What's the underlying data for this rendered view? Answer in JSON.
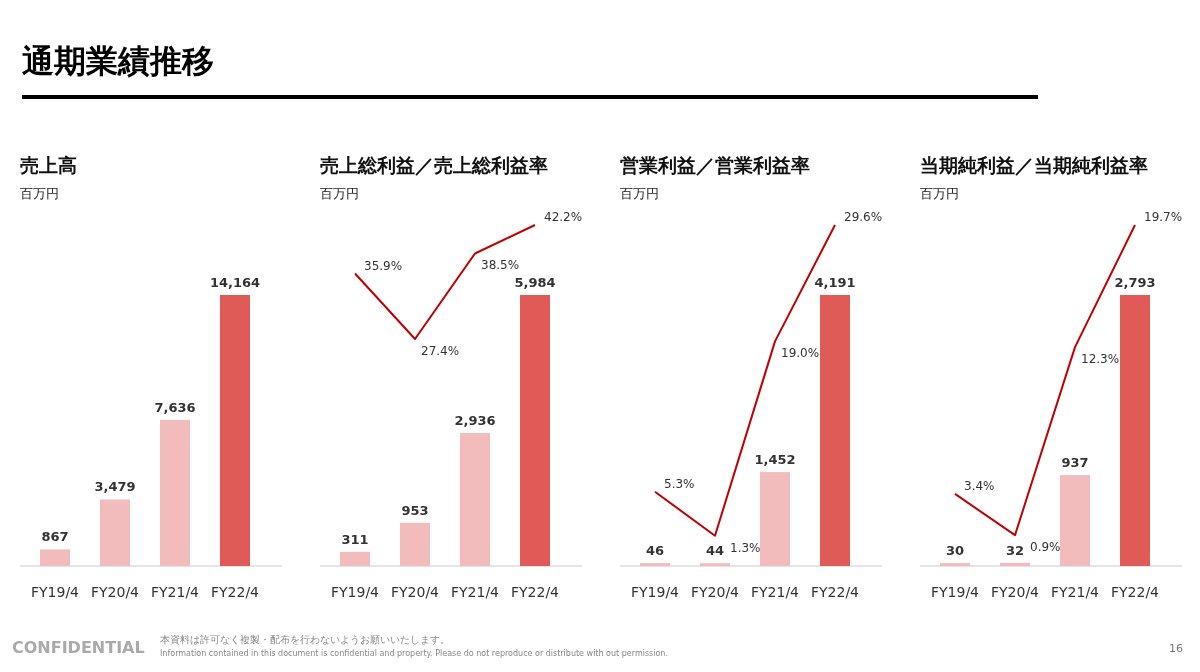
{
  "chart_data": [
    {
      "type": "bar",
      "title": "売上高",
      "subtitle": "百万円",
      "categories": [
        "FY19/4",
        "FY20/4",
        "FY21/4",
        "FY22/4"
      ],
      "series": [
        {
          "colors": [
            "#f2bcbc",
            "#f2bcbc",
            "#f2bcbc",
            "#e05a57"
          ],
          "values": [
            867,
            3479,
            7636,
            14164
          ],
          "value_labels": [
            "867",
            "3,479",
            "7,636",
            "14,164"
          ]
        }
      ],
      "annotations": [
        "通期業績推移",
        "CONFIDENTIAL",
        "本資料は許可なく複製・配布を行わないようお願いいたします。",
        "Information contained in this document is confidential and property. Please do not reproduce or distribute with out permission.",
        "16"
      ]
    },
    {
      "type": "bar",
      "title": "売上総利益／売上総利益率",
      "subtitle": "百万円",
      "categories": [
        "FY19/4",
        "FY20/4",
        "FY21/4",
        "FY22/4"
      ],
      "series": [
        {
          "colors": [
            "#f2bcbc",
            "#f2bcbc",
            "#f2bcbc",
            "#e05a57"
          ],
          "values": [
            311,
            953,
            2936,
            5984
          ],
          "value_labels": [
            "311",
            "953",
            "2,936",
            "5,984"
          ]
        },
        {
          "type": "line",
          "axis": "y2",
          "color": "#c00000",
          "value_labels": [
            "35.9%",
            "27.4%",
            "38.5%",
            "42.2%"
          ],
          "values": [
            35.9,
            27.4,
            38.5,
            42.2
          ]
        }
      ]
    },
    {
      "type": "bar",
      "title": "営業利益／営業利益率",
      "subtitle": "百万円",
      "categories": [
        "FY19/4",
        "FY20/4",
        "FY21/4",
        "FY22/4"
      ],
      "series": [
        {
          "colors": [
            "#f2bcbc",
            "#f2bcbc",
            "#f2bcbc",
            "#e05a57"
          ],
          "values": [
            46,
            44,
            1452,
            4191
          ],
          "value_labels": [
            "46",
            "44",
            "1,452",
            "4,191"
          ]
        },
        {
          "type": "line",
          "axis": "y2",
          "color": "#c00000",
          "value_labels": [
            "5.3%",
            "1.3%",
            "19.0%",
            "29.6%"
          ],
          "values": [
            5.3,
            1.3,
            19.0,
            29.6
          ]
        }
      ]
    },
    {
      "type": "bar",
      "title": "当期純利益／当期純利益率",
      "subtitle": "百万円",
      "categories": [
        "FY19/4",
        "FY20/4",
        "FY21/4",
        "FY22/4"
      ],
      "series": [
        {
          "colors": [
            "#f2bcbc",
            "#f2bcbc",
            "#f2bcbc",
            "#e05a57"
          ],
          "values": [
            30,
            32,
            937,
            2793
          ],
          "value_labels": [
            "30",
            "32",
            "937",
            "2,793"
          ]
        },
        {
          "type": "line",
          "axis": "y2",
          "color": "#c00000",
          "value_labels": [
            "3.4%",
            "0.9%",
            "12.3%",
            "19.7%"
          ],
          "values": [
            3.4,
            0.9,
            12.3,
            19.7
          ]
        }
      ]
    }
  ]
}
